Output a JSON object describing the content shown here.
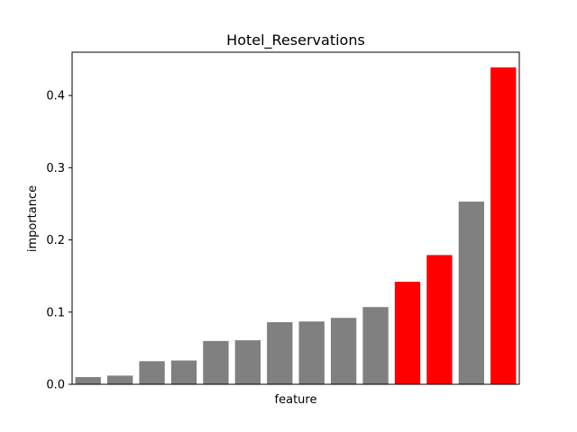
{
  "chart_data": {
    "type": "bar",
    "title": "Hotel_Reservations",
    "xlabel": "feature",
    "ylabel": "importance",
    "ylim": [
      0,
      0.46
    ],
    "yticks": [
      "0.0",
      "0.1",
      "0.2",
      "0.3",
      "0.4"
    ],
    "ytick_values": [
      0.0,
      0.1,
      0.2,
      0.3,
      0.4
    ],
    "grid": false,
    "x_tick_labels_visible": false,
    "values": [
      0.01,
      0.012,
      0.032,
      0.033,
      0.06,
      0.061,
      0.086,
      0.087,
      0.092,
      0.107,
      0.142,
      0.179,
      0.253,
      0.439
    ],
    "highlighted": [
      false,
      false,
      false,
      false,
      false,
      false,
      false,
      false,
      false,
      false,
      true,
      true,
      false,
      true
    ],
    "colors": {
      "default": "#808080",
      "highlight": "#ff0000"
    }
  }
}
